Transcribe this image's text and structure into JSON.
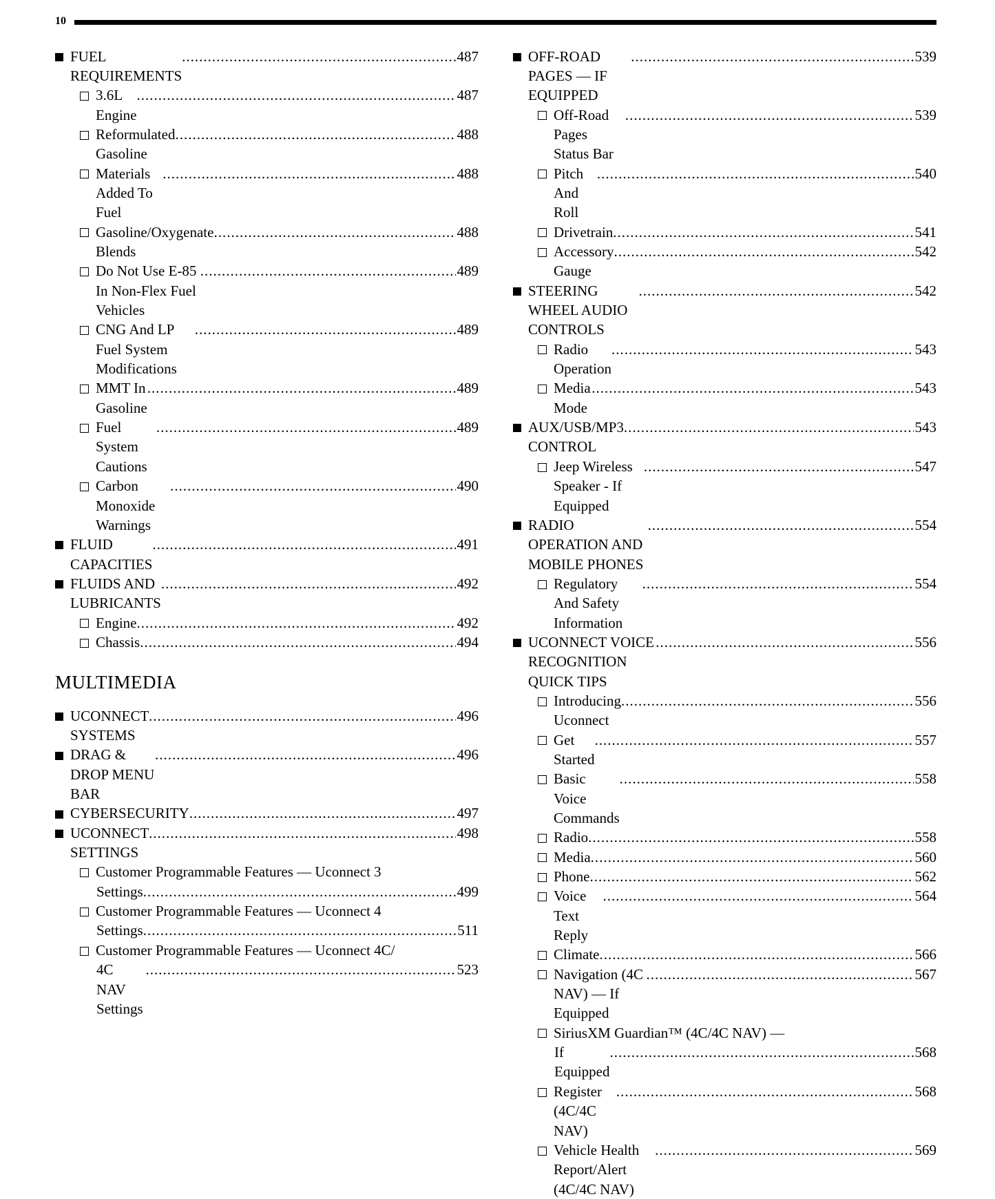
{
  "page_number": "10",
  "section_heading": "MULTIMEDIA",
  "section_heading_column": "left",
  "section_heading_after_index": 14,
  "left": [
    {
      "level": 0,
      "bullet": "filled",
      "label": "FUEL REQUIREMENTS ",
      "page": "487"
    },
    {
      "level": 1,
      "bullet": "open",
      "label": "3.6L Engine ",
      "page": "487"
    },
    {
      "level": 1,
      "bullet": "open",
      "label": "Reformulated Gasoline ",
      "page": "488"
    },
    {
      "level": 1,
      "bullet": "open",
      "label": "Materials Added To Fuel",
      "page": "488"
    },
    {
      "level": 1,
      "bullet": "open",
      "label": "Gasoline/Oxygenate Blends",
      "page": "488"
    },
    {
      "level": 1,
      "bullet": "open",
      "label": "Do Not Use E-85 In Non-Flex Fuel Vehicles",
      "page": "489"
    },
    {
      "level": 1,
      "bullet": "open",
      "label": "CNG And LP Fuel System Modifications",
      "page": "489"
    },
    {
      "level": 1,
      "bullet": "open",
      "label": "MMT In Gasoline",
      "page": "489"
    },
    {
      "level": 1,
      "bullet": "open",
      "label": "Fuel System Cautions",
      "page": "489"
    },
    {
      "level": 1,
      "bullet": "open",
      "label": "Carbon Monoxide Warnings ",
      "page": "490"
    },
    {
      "level": 0,
      "bullet": "filled",
      "label": "FLUID CAPACITIES ",
      "page": "491"
    },
    {
      "level": 0,
      "bullet": "filled",
      "label": "FLUIDS AND LUBRICANTS",
      "page": "492"
    },
    {
      "level": 1,
      "bullet": "open",
      "label": "Engine",
      "page": "492"
    },
    {
      "level": 1,
      "bullet": "open",
      "label": "Chassis ",
      "page": "494"
    },
    {
      "level": 0,
      "bullet": "filled",
      "label": "UCONNECT SYSTEMS ",
      "page": "496"
    },
    {
      "level": 0,
      "bullet": "filled",
      "label": "DRAG & DROP MENU BAR ",
      "page": "496"
    },
    {
      "level": 0,
      "bullet": "filled",
      "label": "CYBERSECURITY ",
      "page": "497"
    },
    {
      "level": 0,
      "bullet": "filled",
      "label": "UCONNECT SETTINGS",
      "page": "498"
    },
    {
      "level": 1,
      "bullet": "open",
      "wrap": true,
      "line1": "Customer Programmable Features — Uconnect 3",
      "line2": "Settings",
      "page": "499"
    },
    {
      "level": 1,
      "bullet": "open",
      "wrap": true,
      "line1": "Customer Programmable Features — Uconnect 4",
      "line2": "Settings",
      "page": "511"
    },
    {
      "level": 1,
      "bullet": "open",
      "wrap": true,
      "line1": "Customer Programmable Features — Uconnect 4C/",
      "line2": "4C NAV Settings",
      "page": "523"
    }
  ],
  "right": [
    {
      "level": 0,
      "bullet": "filled",
      "label": "OFF-ROAD PAGES — IF EQUIPPED",
      "page": "539"
    },
    {
      "level": 1,
      "bullet": "open",
      "label": "Off-Road Pages Status Bar",
      "page": "539"
    },
    {
      "level": 1,
      "bullet": "open",
      "label": "Pitch And Roll ",
      "page": "540"
    },
    {
      "level": 1,
      "bullet": "open",
      "label": "Drivetrain",
      "page": "541"
    },
    {
      "level": 1,
      "bullet": "open",
      "label": "Accessory Gauge",
      "page": "542"
    },
    {
      "level": 0,
      "bullet": "filled",
      "label": "STEERING WHEEL AUDIO CONTROLS ",
      "page": "542"
    },
    {
      "level": 1,
      "bullet": "open",
      "label": "Radio Operation",
      "page": "543"
    },
    {
      "level": 1,
      "bullet": "open",
      "label": "Media Mode",
      "page": "543"
    },
    {
      "level": 0,
      "bullet": "filled",
      "label": "AUX/USB/MP3 CONTROL ",
      "page": "543"
    },
    {
      "level": 1,
      "bullet": "open",
      "label": "Jeep Wireless Speaker - If Equipped",
      "page": "547"
    },
    {
      "level": 0,
      "bullet": "filled",
      "label": "RADIO OPERATION AND MOBILE PHONES",
      "page": "554"
    },
    {
      "level": 1,
      "bullet": "open",
      "label": "Regulatory And Safety Information ",
      "page": "554"
    },
    {
      "level": 0,
      "bullet": "filled",
      "label": "UCONNECT VOICE RECOGNITION QUICK TIPS",
      "page": "556"
    },
    {
      "level": 1,
      "bullet": "open",
      "label": "Introducing Uconnect ",
      "page": "556"
    },
    {
      "level": 1,
      "bullet": "open",
      "label": "Get Started ",
      "page": "557"
    },
    {
      "level": 1,
      "bullet": "open",
      "label": "Basic Voice Commands",
      "page": "558"
    },
    {
      "level": 1,
      "bullet": "open",
      "label": "Radio",
      "page": "558"
    },
    {
      "level": 1,
      "bullet": "open",
      "label": "Media",
      "page": "560"
    },
    {
      "level": 1,
      "bullet": "open",
      "label": "Phone",
      "page": "562"
    },
    {
      "level": 1,
      "bullet": "open",
      "label": "Voice Text Reply ",
      "page": "564"
    },
    {
      "level": 1,
      "bullet": "open",
      "label": "Climate ",
      "page": "566"
    },
    {
      "level": 1,
      "bullet": "open",
      "label": "Navigation (4C NAV) — If Equipped ",
      "page": "567"
    },
    {
      "level": 1,
      "bullet": "open",
      "wrap": true,
      "line1": "SiriusXM Guardian™ (4C/4C NAV) —",
      "line2": "If Equipped",
      "page": "568"
    },
    {
      "level": 1,
      "bullet": "open",
      "label": "Register (4C/4C NAV)",
      "page": "568"
    },
    {
      "level": 1,
      "bullet": "open",
      "label": "Vehicle Health Report/Alert (4C/4C NAV) ",
      "page": "569"
    }
  ]
}
